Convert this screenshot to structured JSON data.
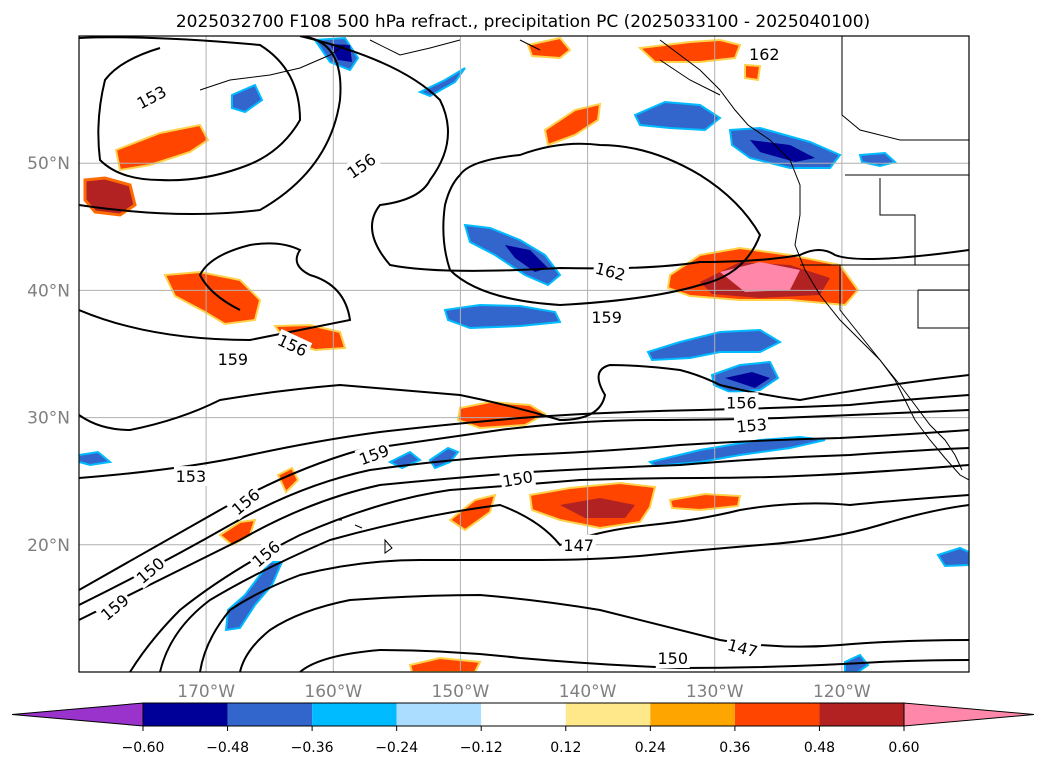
{
  "title": "2025032700 F108 500 hPa refract., precipitation PC (2025033100 - 2025040100)",
  "lat_labels": [
    {
      "value": 50,
      "text": "50°N"
    },
    {
      "value": 40,
      "text": "40°N"
    },
    {
      "value": 30,
      "text": "30°N"
    },
    {
      "value": 20,
      "text": "20°N"
    }
  ],
  "lon_labels": [
    {
      "value": -170,
      "text": "170°W"
    },
    {
      "value": -160,
      "text": "160°W"
    },
    {
      "value": -150,
      "text": "150°W"
    },
    {
      "value": -140,
      "text": "140°W"
    },
    {
      "value": -130,
      "text": "130°W"
    },
    {
      "value": -120,
      "text": "120°W"
    }
  ],
  "map_extent": {
    "lon_min": -180,
    "lon_max": -110,
    "lat_min": 10,
    "lat_max": 60
  },
  "colorbar": {
    "extend": "both",
    "colors": [
      "#9933cc",
      "#000099",
      "#3366cc",
      "#00bbff",
      "#aaddff",
      "#ffffff",
      "#ffe88a",
      "#ffa500",
      "#ff4500",
      "#b22222",
      "#ff88aa"
    ],
    "ticks": [
      "−0.60",
      "−0.48",
      "−0.36",
      "−0.24",
      "−0.12",
      "0.12",
      "0.24",
      "0.36",
      "0.48",
      "0.60"
    ]
  },
  "contour_labels": [
    {
      "text": "153",
      "lon": -174.3,
      "lat": 55.2,
      "rot": -28
    },
    {
      "text": "156",
      "lon": -157.8,
      "lat": 49.8,
      "rot": -35
    },
    {
      "text": "162",
      "lon": -126.1,
      "lat": 58.6,
      "rot": 0
    },
    {
      "text": "162",
      "lon": -138.2,
      "lat": 41.5,
      "rot": 15
    },
    {
      "text": "159",
      "lon": -138.5,
      "lat": 37.9,
      "rot": 0
    },
    {
      "text": "156",
      "lon": -163.2,
      "lat": 35.7,
      "rot": 25
    },
    {
      "text": "159",
      "lon": -167.9,
      "lat": 34.6,
      "rot": 0
    },
    {
      "text": "156",
      "lon": -127.9,
      "lat": 31.2,
      "rot": 0
    },
    {
      "text": "153",
      "lon": -127.1,
      "lat": 29.4,
      "rot": -5
    },
    {
      "text": "159",
      "lon": -156.8,
      "lat": 27.1,
      "rot": -20
    },
    {
      "text": "150",
      "lon": -145.5,
      "lat": 25.2,
      "rot": -10
    },
    {
      "text": "153",
      "lon": -171.2,
      "lat": 25.4,
      "rot": 0
    },
    {
      "text": "156",
      "lon": -166.9,
      "lat": 23.4,
      "rot": -40
    },
    {
      "text": "156",
      "lon": -165.3,
      "lat": 19.3,
      "rot": -40
    },
    {
      "text": "147",
      "lon": -140.7,
      "lat": 20.0,
      "rot": 0
    },
    {
      "text": "150",
      "lon": -174.4,
      "lat": 18.0,
      "rot": -40
    },
    {
      "text": "159",
      "lon": -177.2,
      "lat": 15.1,
      "rot": -40
    },
    {
      "text": "147",
      "lon": -127.8,
      "lat": 11.9,
      "rot": 15
    },
    {
      "text": "150",
      "lon": -133.3,
      "lat": 11.1,
      "rot": 0
    }
  ]
}
